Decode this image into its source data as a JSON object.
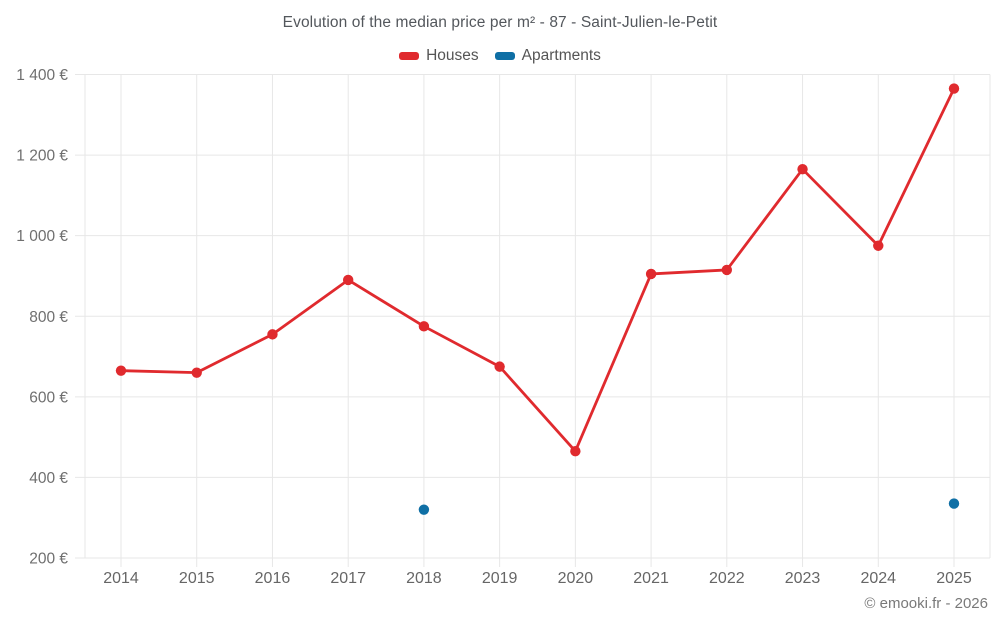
{
  "header": {
    "title": "Evolution of the median price per m² - 87 - Saint-Julien-le-Petit"
  },
  "legend": {
    "items": [
      {
        "label": "Houses",
        "color": "#e02a2e"
      },
      {
        "label": "Apartments",
        "color": "#0f6fa5"
      }
    ]
  },
  "footer": {
    "credit": "© emooki.fr - 2026"
  },
  "chart_data": {
    "type": "line",
    "title": "Evolution of the median price per m² - 87 - Saint-Julien-le-Petit",
    "categories": [
      "2014",
      "2015",
      "2016",
      "2017",
      "2018",
      "2019",
      "2020",
      "2021",
      "2022",
      "2023",
      "2024",
      "2025"
    ],
    "series": [
      {
        "name": "Houses",
        "color": "#e02a2e",
        "values": [
          665,
          660,
          755,
          890,
          775,
          675,
          465,
          905,
          915,
          1165,
          975,
          1365
        ]
      },
      {
        "name": "Apartments",
        "color": "#0f6fa5",
        "values": [
          null,
          null,
          null,
          null,
          320,
          null,
          null,
          null,
          null,
          null,
          null,
          335
        ]
      }
    ],
    "xlabel": "",
    "ylabel": "",
    "ylim": [
      200,
      1400
    ],
    "y_ticks": [
      {
        "value": 200,
        "label": "200 €"
      },
      {
        "value": 400,
        "label": "400 €"
      },
      {
        "value": 600,
        "label": "600 €"
      },
      {
        "value": 800,
        "label": "800 €"
      },
      {
        "value": 1000,
        "label": "1 000 €"
      },
      {
        "value": 1200,
        "label": "1 200 €"
      },
      {
        "value": 1400,
        "label": "1 400 €"
      }
    ],
    "grid": true,
    "legend_position": "top",
    "colors": {
      "gridline": "#e7e7e7",
      "y_tick_text": "#6f6f6f",
      "x_tick_text": "#666666",
      "title_text": "#53575c"
    }
  }
}
